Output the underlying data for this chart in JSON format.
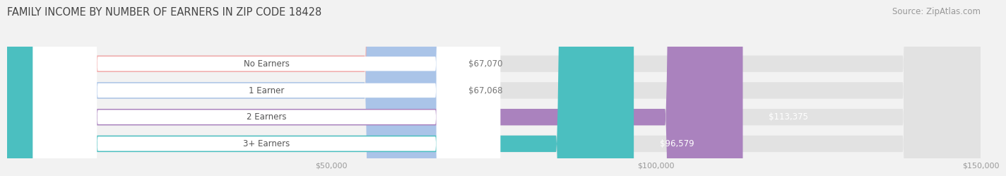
{
  "title": "FAMILY INCOME BY NUMBER OF EARNERS IN ZIP CODE 18428",
  "source": "Source: ZipAtlas.com",
  "categories": [
    "No Earners",
    "1 Earner",
    "2 Earners",
    "3+ Earners"
  ],
  "values": [
    67070,
    67068,
    113375,
    96579
  ],
  "bar_colors": [
    "#f2aaaa",
    "#aac4e8",
    "#aa82be",
    "#4bbfc0"
  ],
  "value_labels": [
    "$67,070",
    "$67,068",
    "$113,375",
    "$96,579"
  ],
  "value_label_colors": [
    "#777777",
    "#777777",
    "#ffffff",
    "#ffffff"
  ],
  "xmin": 0,
  "xmax": 150000,
  "xticks": [
    50000,
    100000,
    150000
  ],
  "xtick_labels": [
    "$50,000",
    "$100,000",
    "$150,000"
  ],
  "bar_height": 0.62,
  "background_color": "#f2f2f2",
  "bar_bg_color": "#e2e2e2",
  "title_fontsize": 10.5,
  "source_fontsize": 8.5,
  "label_fontsize": 8.5,
  "value_fontsize": 8.5
}
